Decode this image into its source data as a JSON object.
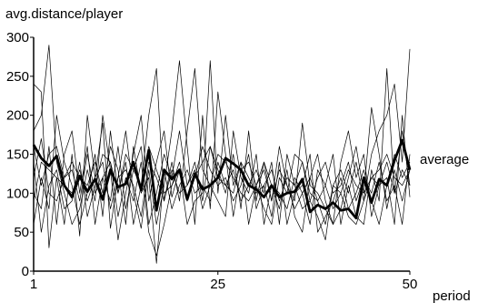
{
  "chart_data": {
    "type": "line",
    "title": "",
    "xlabel": "period",
    "ylabel": "avg.distance/player",
    "xlim": [
      1,
      50
    ],
    "ylim": [
      0,
      300
    ],
    "x_ticks": [
      1,
      25,
      50
    ],
    "y_ticks": [
      0,
      50,
      100,
      150,
      200,
      250,
      300
    ],
    "grid": false,
    "legend": "none",
    "annotation": "average",
    "series_color": "#000000",
    "x": [
      1,
      2,
      3,
      4,
      5,
      6,
      7,
      8,
      9,
      10,
      11,
      12,
      13,
      14,
      15,
      16,
      17,
      18,
      19,
      20,
      21,
      22,
      23,
      24,
      25,
      26,
      27,
      28,
      29,
      30,
      31,
      32,
      33,
      34,
      35,
      36,
      37,
      38,
      39,
      40,
      41,
      42,
      43,
      44,
      45,
      46,
      47,
      48,
      49,
      50
    ],
    "series": [
      {
        "values": [
          240,
          230,
          30,
          120,
          60,
          150,
          45,
          200,
          120,
          190,
          55,
          120,
          180,
          100,
          55,
          130,
          60,
          110,
          180,
          270,
          160,
          60,
          200,
          80,
          230,
          150,
          70,
          130,
          140,
          110,
          80,
          60,
          120,
          100,
          150,
          140,
          90,
          70,
          40,
          110,
          100,
          70,
          60,
          90,
          150,
          180,
          200,
          240,
          140,
          285
        ],
        "emphasis": false
      },
      {
        "values": [
          180,
          200,
          290,
          140,
          100,
          60,
          80,
          130,
          90,
          200,
          130,
          40,
          100,
          150,
          200,
          90,
          140,
          180,
          95,
          130,
          60,
          90,
          100,
          270,
          100,
          200,
          110,
          140,
          60,
          110,
          130,
          90,
          160,
          110,
          90,
          190,
          110,
          100,
          80,
          60,
          140,
          180,
          120,
          150,
          70,
          110,
          120,
          60,
          200,
          95
        ],
        "emphasis": false
      },
      {
        "values": [
          60,
          120,
          80,
          200,
          140,
          110,
          60,
          100,
          150,
          70,
          180,
          100,
          140,
          60,
          110,
          200,
          260,
          90,
          140,
          90,
          180,
          260,
          130,
          110,
          90,
          70,
          180,
          120,
          100,
          150,
          60,
          110,
          80,
          130,
          70,
          50,
          120,
          150,
          90,
          60,
          80,
          120,
          160,
          100,
          210,
          150,
          80,
          130,
          90,
          130
        ],
        "emphasis": false
      },
      {
        "values": [
          100,
          80,
          160,
          60,
          150,
          180,
          100,
          160,
          60,
          120,
          90,
          160,
          80,
          130,
          160,
          60,
          100,
          150,
          120,
          180,
          110,
          140,
          90,
          160,
          130,
          100,
          150,
          80,
          180,
          90,
          140,
          110,
          100,
          80,
          120,
          100,
          60,
          130,
          110,
          150,
          60,
          110,
          70,
          60,
          130,
          90,
          260,
          100,
          180,
          110
        ],
        "emphasis": false
      },
      {
        "values": [
          140,
          50,
          110,
          130,
          80,
          90,
          140,
          70,
          110,
          150,
          140,
          70,
          120,
          90,
          140,
          50,
          20,
          60,
          110,
          140,
          90,
          120,
          160,
          130,
          110,
          120,
          90,
          110,
          150,
          80,
          110,
          70,
          140,
          60,
          100,
          110,
          150,
          50,
          70,
          90,
          120,
          80,
          100,
          130,
          90,
          60,
          110,
          150,
          120,
          140
        ],
        "emphasis": false
      },
      {
        "values": [
          120,
          170,
          100,
          90,
          120,
          140,
          120,
          110,
          140,
          100,
          160,
          130,
          60,
          160,
          100,
          120,
          10,
          130,
          80,
          110,
          130,
          100,
          110,
          90,
          140,
          110,
          130,
          90,
          110,
          130,
          100,
          140,
          60,
          150,
          110,
          80,
          90,
          120,
          140,
          100,
          110,
          140,
          90,
          120,
          100,
          140,
          90,
          110,
          60,
          150
        ],
        "emphasis": false
      },
      {
        "values": [
          90,
          140,
          130,
          120,
          110,
          100,
          130,
          90,
          120,
          140,
          80,
          120,
          130,
          110,
          70,
          140,
          120,
          90,
          130,
          100,
          110,
          130,
          80,
          110,
          150,
          140,
          120,
          100,
          90,
          110,
          140,
          90,
          130,
          110,
          80,
          100,
          120,
          90,
          60,
          110,
          130,
          100,
          140,
          90,
          120,
          110,
          140,
          100,
          130,
          110
        ],
        "emphasis": false
      },
      {
        "values": [
          160,
          110,
          150,
          160,
          120,
          130,
          90,
          150,
          100,
          120,
          140,
          100,
          150,
          130,
          110,
          160,
          130,
          100,
          110,
          130,
          90,
          120,
          140,
          160,
          120,
          110,
          100,
          140,
          120,
          100,
          110,
          130,
          90,
          120,
          110,
          140,
          100,
          90,
          110,
          80,
          100,
          130,
          110,
          100,
          120,
          130,
          150,
          120,
          110,
          130
        ],
        "emphasis": false
      },
      {
        "values": [
          162,
          145,
          135,
          148,
          110,
          95,
          122,
          102,
          118,
          92,
          130,
          108,
          112,
          140,
          104,
          155,
          78,
          130,
          118,
          130,
          92,
          125,
          105,
          110,
          120,
          145,
          138,
          130,
          110,
          105,
          95,
          110,
          95,
          100,
          102,
          118,
          76,
          85,
          80,
          88,
          78,
          80,
          68,
          120,
          88,
          118,
          110,
          142,
          168,
          130
        ],
        "emphasis": true
      }
    ]
  }
}
